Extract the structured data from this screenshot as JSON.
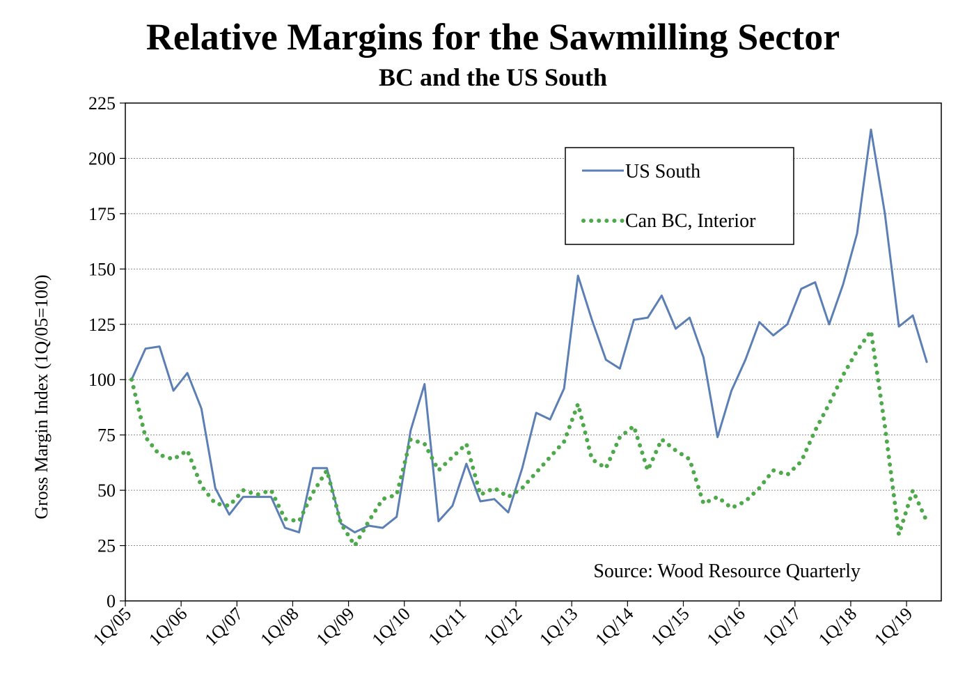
{
  "title": "Relative Margins for the Sawmilling Sector",
  "subtitle": "BC and the US South",
  "source": "Source: Wood Resource Quarterly",
  "colors": {
    "us_south": "#5b7fb5",
    "bc_interior": "#4ea94b",
    "grid": "#8a8a8a"
  },
  "chart_data": {
    "type": "line",
    "title": "Relative Margins for the Sawmilling Sector",
    "subtitle": "BC and the US South",
    "ylabel": "Gross Margin Index (1Q/05=100)",
    "xlabel": "",
    "ylim": [
      0,
      225
    ],
    "yticks": [
      0,
      25,
      50,
      75,
      100,
      125,
      150,
      175,
      200,
      225
    ],
    "x_tick_labels": [
      "1Q/05",
      "1Q/06",
      "1Q/07",
      "1Q/08",
      "1Q/09",
      "1Q/10",
      "1Q/11",
      "1Q/12",
      "1Q/13",
      "1Q/14",
      "1Q/15",
      "1Q/16",
      "1Q/17",
      "1Q/18",
      "1Q/19"
    ],
    "x": [
      "1Q/05",
      "2Q/05",
      "3Q/05",
      "4Q/05",
      "1Q/06",
      "2Q/06",
      "3Q/06",
      "4Q/06",
      "1Q/07",
      "2Q/07",
      "3Q/07",
      "4Q/07",
      "1Q/08",
      "2Q/08",
      "3Q/08",
      "4Q/08",
      "1Q/09",
      "2Q/09",
      "3Q/09",
      "4Q/09",
      "1Q/10",
      "2Q/10",
      "3Q/10",
      "4Q/10",
      "1Q/11",
      "2Q/11",
      "3Q/11",
      "4Q/11",
      "1Q/12",
      "2Q/12",
      "3Q/12",
      "4Q/12",
      "1Q/13",
      "2Q/13",
      "3Q/13",
      "4Q/13",
      "1Q/14",
      "2Q/14",
      "3Q/14",
      "4Q/14",
      "1Q/15",
      "2Q/15",
      "3Q/15",
      "4Q/15",
      "1Q/16",
      "2Q/16",
      "3Q/16",
      "4Q/16",
      "1Q/17",
      "2Q/17",
      "3Q/17",
      "4Q/17",
      "1Q/18",
      "2Q/18",
      "3Q/18",
      "4Q/18",
      "1Q/19",
      "2Q/19"
    ],
    "grid": true,
    "legend_position": "top-right",
    "series": [
      {
        "name": "US South",
        "style": "solid",
        "values": [
          100,
          114,
          115,
          95,
          103,
          87,
          51,
          39,
          47,
          47,
          47,
          33,
          31,
          60,
          60,
          35,
          31,
          34,
          33,
          38,
          77,
          98,
          36,
          43,
          62,
          45,
          46,
          40,
          60,
          85,
          82,
          96,
          147,
          127,
          109,
          105,
          127,
          128,
          138,
          123,
          128,
          110,
          74,
          95,
          109,
          126,
          120,
          125,
          141,
          144,
          125,
          143,
          166,
          213,
          175,
          124,
          129,
          108
        ]
      },
      {
        "name": "Can BC, Interior",
        "style": "dotted",
        "values": [
          100,
          74,
          66,
          64,
          68,
          52,
          44,
          43,
          50,
          48,
          50,
          37,
          36,
          49,
          59,
          35,
          25,
          36,
          46,
          48,
          73,
          71,
          59,
          65,
          71,
          48,
          51,
          47,
          51,
          58,
          65,
          72,
          89,
          64,
          60,
          74,
          79,
          59,
          73,
          68,
          64,
          44,
          47,
          42,
          45,
          51,
          59,
          57,
          63,
          77,
          89,
          102,
          113,
          122,
          79,
          30,
          50,
          36
        ]
      }
    ]
  }
}
